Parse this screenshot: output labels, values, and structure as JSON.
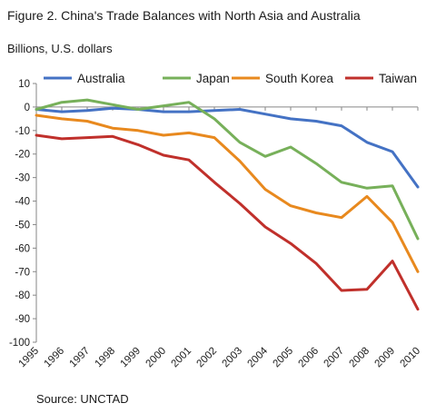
{
  "chart_data": {
    "type": "line",
    "title": "Figure 2. China's Trade Balances with North Asia and Australia",
    "subtitle": "Billions, U.S. dollars",
    "source": "Source: UNCTAD",
    "categories": [
      "1995",
      "1996",
      "1997",
      "1998",
      "1999",
      "2000",
      "2001",
      "2002",
      "2003",
      "2004",
      "2005",
      "2006",
      "2007",
      "2008",
      "2009",
      "2010"
    ],
    "ylim": [
      -100,
      10
    ],
    "yticks": [
      10,
      0,
      -10,
      -20,
      -30,
      -40,
      -50,
      -60,
      -70,
      -80,
      -90,
      -100
    ],
    "grid": false,
    "legend_position": "top",
    "series": [
      {
        "name": "Australia",
        "color": "#4472C4",
        "values": [
          -1,
          -2,
          -1.5,
          -0.5,
          -1,
          -2,
          -2,
          -1.5,
          -1,
          -3,
          -5,
          -6,
          -8,
          -15,
          -19,
          -34
        ]
      },
      {
        "name": "Japan",
        "color": "#77B05A",
        "values": [
          -1,
          2,
          3,
          1,
          -1,
          0.5,
          2,
          -5,
          -15,
          -21,
          -17,
          -24,
          -32,
          -34.5,
          -33.5,
          -56
        ]
      },
      {
        "name": "South Korea",
        "color": "#E8891E",
        "values": [
          -3.5,
          -5,
          -6,
          -9,
          -10,
          -12,
          -11,
          -13,
          -23,
          -35,
          -42,
          -45,
          -47,
          -38,
          -49,
          -70
        ]
      },
      {
        "name": "Taiwan",
        "color": "#C0302B",
        "values": [
          -12,
          -13.5,
          -13,
          -12.5,
          -16,
          -20.5,
          -22.5,
          -32,
          -41,
          -51,
          -58,
          -66.5,
          -78,
          -77.5,
          -65.5,
          -86
        ]
      }
    ]
  }
}
